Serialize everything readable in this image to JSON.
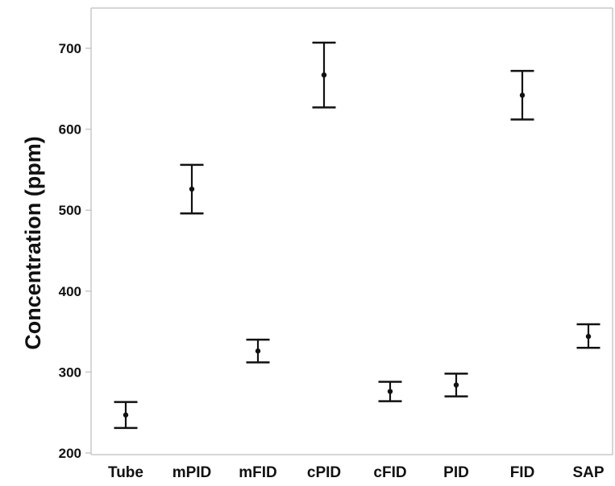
{
  "chart_data": {
    "type": "scatter",
    "title": "",
    "xlabel": "",
    "ylabel": "Concentration (ppm)",
    "ylim": [
      200,
      760
    ],
    "yticks": [
      200,
      300,
      400,
      500,
      600,
      700
    ],
    "grid": false,
    "categories": [
      "Tube",
      "mPID",
      "mFID",
      "cPID",
      "cFID",
      "PID",
      "FID",
      "SAP"
    ],
    "series": [
      {
        "values": [
          247,
          526,
          326,
          667,
          276,
          284,
          642,
          344
        ],
        "lower": [
          231,
          496,
          312,
          627,
          264,
          270,
          612,
          330
        ],
        "upper": [
          263,
          556,
          340,
          707,
          288,
          298,
          672,
          359
        ]
      }
    ],
    "colors": {
      "marks": "#111111",
      "frame": "#c8c8c8"
    }
  }
}
